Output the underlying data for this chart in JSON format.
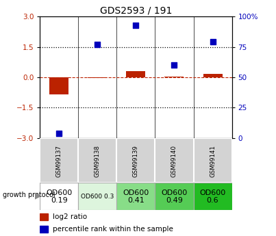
{
  "title": "GDS2593 / 191",
  "samples": [
    "GSM99137",
    "GSM99138",
    "GSM99139",
    "GSM99140",
    "GSM99141"
  ],
  "log2_ratio": [
    -0.85,
    -0.05,
    0.3,
    0.05,
    0.18
  ],
  "percentile_rank": [
    4,
    77,
    93,
    60,
    79
  ],
  "bar_color": "#bb2200",
  "dot_color": "#0000bb",
  "ylim_left": [
    -3,
    3
  ],
  "ylim_right": [
    0,
    100
  ],
  "yticks_left": [
    -3,
    -1.5,
    0,
    1.5,
    3
  ],
  "yticks_right": [
    0,
    25,
    50,
    75,
    100
  ],
  "hline_dotted": [
    1.5,
    -1.5
  ],
  "hline_dashed_color": "#bb2200",
  "growth_protocol_labels": [
    "OD600\n0.19",
    "OD600 0.3",
    "OD600\n0.41",
    "OD600\n0.49",
    "OD600\n0.6"
  ],
  "growth_protocol_colors": [
    "#ffffff",
    "#ddf5dd",
    "#88dd88",
    "#55cc55",
    "#22bb22"
  ],
  "growth_protocol_fontsizes": [
    8,
    6.5,
    8,
    8,
    8
  ],
  "sample_bg_color": "#d3d3d3",
  "legend_bar_color": "#bb2200",
  "legend_dot_color": "#0000bb",
  "gp_label_text": "growth protocol",
  "gp_arrow": "▶",
  "legend_text1": "log2 ratio",
  "legend_text2": "percentile rank within the sample"
}
